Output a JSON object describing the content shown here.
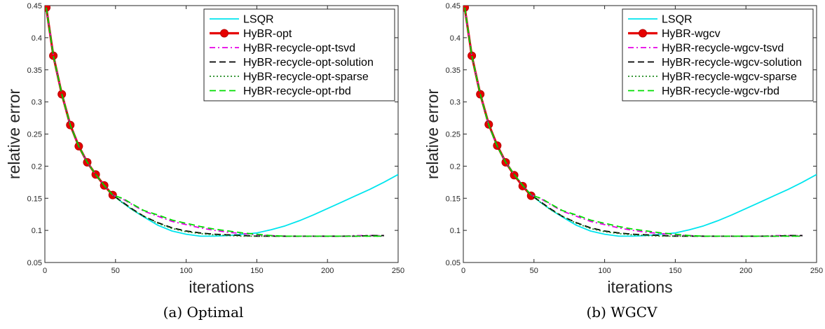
{
  "chart_data": [
    {
      "type": "line",
      "caption": "(a) Optimal",
      "xlabel": "iterations",
      "ylabel": "relative error",
      "xlim": [
        0,
        250
      ],
      "ylim": [
        0.05,
        0.45
      ],
      "xticks": [
        0,
        50,
        100,
        150,
        200,
        250
      ],
      "yticks": [
        0.05,
        0.1,
        0.15,
        0.2,
        0.25,
        0.3,
        0.35,
        0.4,
        0.45
      ],
      "xtick_labels": [
        "0",
        "50",
        "100",
        "150",
        "200",
        "250"
      ],
      "ytick_labels": [
        "0.05",
        "0.1",
        "0.15",
        "0.2",
        "0.25",
        "0.3",
        "0.35",
        "0.4",
        "0.45"
      ],
      "grid": false,
      "legend_position": "top-right",
      "series": [
        {
          "name": "LSQR",
          "color": "#00e5ee",
          "style": "solid",
          "x": [
            1,
            6,
            12,
            18,
            24,
            30,
            36,
            42,
            48,
            55,
            62,
            70,
            80,
            90,
            100,
            110,
            120,
            130,
            140,
            150,
            160,
            170,
            180,
            190,
            200,
            210,
            220,
            230,
            240,
            250
          ],
          "y": [
            0.447,
            0.372,
            0.312,
            0.264,
            0.231,
            0.206,
            0.187,
            0.17,
            0.155,
            0.143,
            0.132,
            0.121,
            0.108,
            0.099,
            0.094,
            0.091,
            0.091,
            0.092,
            0.094,
            0.096,
            0.101,
            0.107,
            0.115,
            0.124,
            0.134,
            0.144,
            0.154,
            0.164,
            0.175,
            0.187
          ]
        },
        {
          "name": "HyBR-opt",
          "color": "#e60000",
          "style": "marker",
          "x": [
            1,
            6,
            12,
            18,
            24,
            30,
            36,
            42,
            48
          ],
          "y": [
            0.447,
            0.372,
            0.312,
            0.264,
            0.231,
            0.206,
            0.187,
            0.17,
            0.155
          ]
        },
        {
          "name": "HyBR-recycle-opt-tsvd",
          "color": "#e600e6",
          "style": "dashdot",
          "x": [
            1,
            6,
            12,
            18,
            24,
            30,
            36,
            42,
            48,
            55,
            62,
            70,
            80,
            90,
            100,
            110,
            120,
            130,
            140,
            150,
            160,
            170,
            180,
            190,
            200,
            210,
            220,
            230,
            240
          ],
          "y": [
            0.447,
            0.372,
            0.312,
            0.264,
            0.231,
            0.206,
            0.187,
            0.17,
            0.155,
            0.149,
            0.14,
            0.13,
            0.122,
            0.114,
            0.109,
            0.104,
            0.1,
            0.097,
            0.095,
            0.093,
            0.092,
            0.091,
            0.091,
            0.091,
            0.091,
            0.091,
            0.092,
            0.092,
            0.092
          ]
        },
        {
          "name": "HyBR-recycle-opt-solution",
          "color": "#000000",
          "style": "dashed",
          "x": [
            1,
            6,
            12,
            18,
            24,
            30,
            36,
            42,
            48,
            55,
            62,
            70,
            80,
            90,
            100,
            110,
            120,
            130,
            140,
            150,
            160,
            170,
            180,
            190,
            200,
            210,
            220,
            230,
            240
          ],
          "y": [
            0.447,
            0.372,
            0.312,
            0.264,
            0.231,
            0.206,
            0.187,
            0.17,
            0.155,
            0.144,
            0.133,
            0.122,
            0.112,
            0.104,
            0.099,
            0.096,
            0.094,
            0.093,
            0.092,
            0.091,
            0.091,
            0.091,
            0.091,
            0.091,
            0.091,
            0.091,
            0.091,
            0.092,
            0.092
          ]
        },
        {
          "name": "HyBR-recycle-opt-sparse",
          "color": "#228b22",
          "style": "dotted",
          "x": [
            1,
            6,
            12,
            18,
            24,
            30,
            36,
            42,
            48,
            55,
            62,
            70,
            80,
            90,
            100,
            110,
            120,
            130,
            140,
            150,
            160,
            170,
            180,
            190,
            200,
            210,
            220,
            230,
            240
          ],
          "y": [
            0.447,
            0.372,
            0.312,
            0.264,
            0.231,
            0.206,
            0.187,
            0.17,
            0.155,
            0.143,
            0.132,
            0.122,
            0.111,
            0.103,
            0.098,
            0.095,
            0.093,
            0.092,
            0.091,
            0.091,
            0.091,
            0.091,
            0.091,
            0.091,
            0.091,
            0.091,
            0.091,
            0.091,
            0.091
          ]
        },
        {
          "name": "HyBR-recycle-opt-rbd",
          "color": "#00dd00",
          "style": "dashed",
          "x": [
            1,
            6,
            12,
            18,
            24,
            30,
            36,
            42,
            48,
            55,
            62,
            70,
            80,
            90,
            100,
            110,
            120,
            130,
            140,
            150,
            160,
            170,
            180,
            190,
            200,
            210,
            220,
            230,
            240
          ],
          "y": [
            0.447,
            0.372,
            0.312,
            0.264,
            0.231,
            0.206,
            0.187,
            0.17,
            0.155,
            0.15,
            0.141,
            0.131,
            0.124,
            0.116,
            0.111,
            0.106,
            0.102,
            0.099,
            0.096,
            0.094,
            0.092,
            0.091,
            0.091,
            0.091,
            0.091,
            0.091,
            0.091,
            0.091,
            0.091
          ]
        }
      ]
    },
    {
      "type": "line",
      "caption": "(b) WGCV",
      "xlabel": "iterations",
      "ylabel": "relative error",
      "xlim": [
        0,
        250
      ],
      "ylim": [
        0.05,
        0.45
      ],
      "xticks": [
        0,
        50,
        100,
        150,
        200,
        250
      ],
      "yticks": [
        0.05,
        0.1,
        0.15,
        0.2,
        0.25,
        0.3,
        0.35,
        0.4,
        0.45
      ],
      "xtick_labels": [
        "0",
        "50",
        "100",
        "150",
        "200",
        "250"
      ],
      "ytick_labels": [
        "0.05",
        "0.1",
        "0.15",
        "0.2",
        "0.25",
        "0.3",
        "0.35",
        "0.4",
        "0.45"
      ],
      "grid": false,
      "legend_position": "top-right",
      "series": [
        {
          "name": "LSQR",
          "color": "#00e5ee",
          "style": "solid",
          "x": [
            1,
            6,
            12,
            18,
            24,
            30,
            36,
            42,
            48,
            55,
            62,
            70,
            80,
            90,
            100,
            110,
            120,
            130,
            140,
            150,
            160,
            170,
            180,
            190,
            200,
            210,
            220,
            230,
            240,
            250
          ],
          "y": [
            0.447,
            0.372,
            0.312,
            0.264,
            0.231,
            0.206,
            0.187,
            0.17,
            0.155,
            0.143,
            0.132,
            0.121,
            0.108,
            0.099,
            0.094,
            0.091,
            0.091,
            0.092,
            0.094,
            0.096,
            0.101,
            0.107,
            0.115,
            0.124,
            0.134,
            0.144,
            0.154,
            0.164,
            0.175,
            0.187
          ]
        },
        {
          "name": "HyBR-wgcv",
          "color": "#e60000",
          "style": "marker",
          "x": [
            1,
            6,
            12,
            18,
            24,
            30,
            36,
            42,
            48
          ],
          "y": [
            0.447,
            0.372,
            0.312,
            0.265,
            0.232,
            0.206,
            0.186,
            0.169,
            0.154
          ]
        },
        {
          "name": "HyBR-recycle-wgcv-tsvd",
          "color": "#e600e6",
          "style": "dashdot",
          "x": [
            1,
            6,
            12,
            18,
            24,
            30,
            36,
            42,
            48,
            55,
            62,
            70,
            80,
            90,
            100,
            110,
            120,
            130,
            140,
            150,
            160,
            170,
            180,
            190,
            200,
            210,
            220,
            230,
            240
          ],
          "y": [
            0.447,
            0.372,
            0.312,
            0.264,
            0.231,
            0.206,
            0.187,
            0.17,
            0.155,
            0.149,
            0.14,
            0.13,
            0.122,
            0.114,
            0.109,
            0.104,
            0.1,
            0.097,
            0.095,
            0.093,
            0.092,
            0.091,
            0.091,
            0.091,
            0.091,
            0.091,
            0.092,
            0.092,
            0.092
          ]
        },
        {
          "name": "HyBR-recycle-wgcv-solution",
          "color": "#000000",
          "style": "dashed",
          "x": [
            1,
            6,
            12,
            18,
            24,
            30,
            36,
            42,
            48,
            55,
            62,
            70,
            80,
            90,
            100,
            110,
            120,
            130,
            140,
            150,
            160,
            170,
            180,
            190,
            200,
            210,
            220,
            230,
            240
          ],
          "y": [
            0.447,
            0.372,
            0.312,
            0.264,
            0.231,
            0.206,
            0.187,
            0.17,
            0.155,
            0.144,
            0.133,
            0.122,
            0.112,
            0.104,
            0.099,
            0.096,
            0.094,
            0.093,
            0.092,
            0.091,
            0.091,
            0.091,
            0.091,
            0.091,
            0.091,
            0.091,
            0.091,
            0.092,
            0.092
          ]
        },
        {
          "name": "HyBR-recycle-wgcv-sparse",
          "color": "#228b22",
          "style": "dotted",
          "x": [
            1,
            6,
            12,
            18,
            24,
            30,
            36,
            42,
            48,
            55,
            62,
            70,
            80,
            90,
            100,
            110,
            120,
            130,
            140,
            150,
            160,
            170,
            180,
            190,
            200,
            210,
            220,
            230,
            240
          ],
          "y": [
            0.447,
            0.372,
            0.312,
            0.264,
            0.231,
            0.206,
            0.187,
            0.17,
            0.155,
            0.143,
            0.132,
            0.122,
            0.111,
            0.103,
            0.098,
            0.095,
            0.093,
            0.092,
            0.091,
            0.091,
            0.091,
            0.091,
            0.091,
            0.091,
            0.091,
            0.091,
            0.091,
            0.091,
            0.091
          ]
        },
        {
          "name": "HyBR-recycle-wgcv-rbd",
          "color": "#00dd00",
          "style": "dashed",
          "x": [
            1,
            6,
            12,
            18,
            24,
            30,
            36,
            42,
            48,
            55,
            62,
            70,
            80,
            90,
            100,
            110,
            120,
            130,
            140,
            150,
            160,
            170,
            180,
            190,
            200,
            210,
            220,
            230,
            240
          ],
          "y": [
            0.447,
            0.372,
            0.312,
            0.264,
            0.231,
            0.206,
            0.187,
            0.17,
            0.155,
            0.15,
            0.141,
            0.131,
            0.124,
            0.116,
            0.111,
            0.106,
            0.102,
            0.099,
            0.096,
            0.094,
            0.092,
            0.091,
            0.091,
            0.091,
            0.091,
            0.091,
            0.091,
            0.091,
            0.091
          ]
        }
      ]
    }
  ]
}
